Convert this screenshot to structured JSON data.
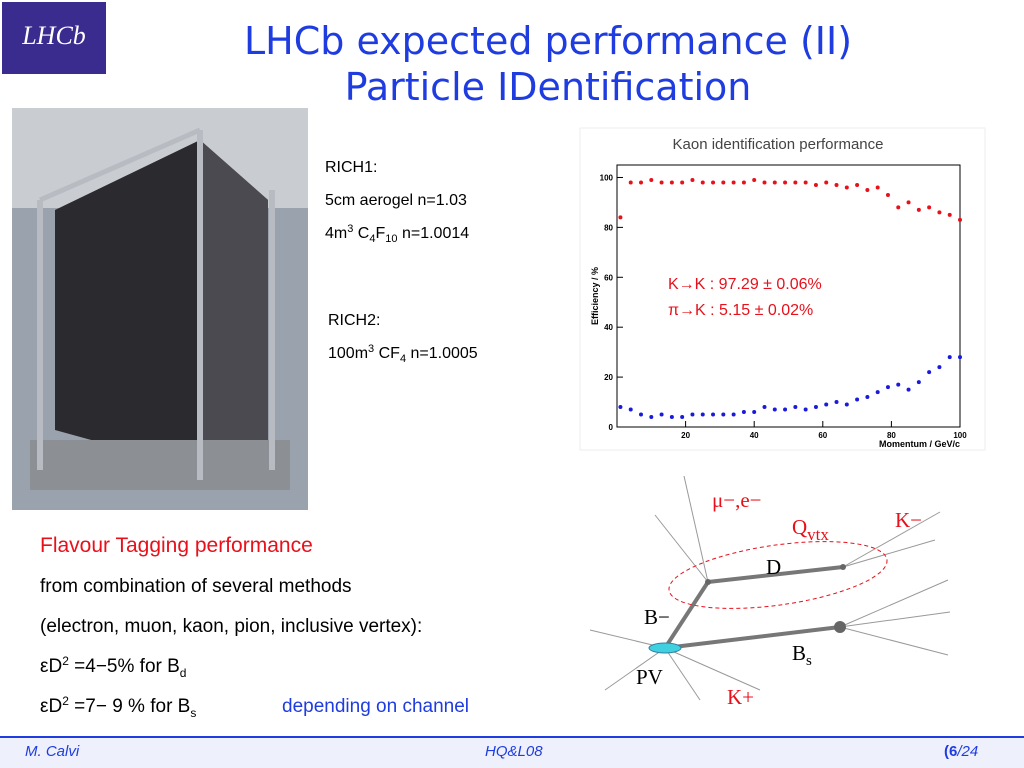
{
  "logo": "LHCb",
  "title": [
    "LHCb expected performance (II)",
    "Particle IDentification"
  ],
  "rich1": [
    [
      "RICH1:"
    ],
    [
      "5cm aerogel n=1.03"
    ],
    [
      "4m",
      "3",
      " C",
      "4",
      "F",
      "10",
      " n=1.0014"
    ]
  ],
  "rich2": [
    [
      "RICH2:"
    ],
    [
      "100m",
      "3",
      " CF",
      "4",
      "  n=1.0005"
    ]
  ],
  "tagging": {
    "heading": "Flavour Tagging performance",
    "lines": [
      "from combination of several methods",
      "(electron, muon, kaon, pion, inclusive vertex):"
    ],
    "eff_d": [
      "εD",
      "2",
      " =4−5% for B",
      "d"
    ],
    "eff_s": [
      "εD",
      "2",
      " =7− 9 % for B",
      "s"
    ],
    "note": "depending on channel"
  },
  "chart_data": {
    "type": "scatter",
    "title": "Kaon identification performance",
    "x_label": "Momentum / GeV/c",
    "y_label": "Efficiency / %",
    "x": [
      1,
      4,
      7,
      10,
      13,
      16,
      19,
      22,
      25,
      28,
      31,
      34,
      37,
      40,
      43,
      46,
      49,
      52,
      55,
      58,
      61,
      64,
      67,
      70,
      73,
      76,
      79,
      82,
      85,
      88,
      91,
      94,
      97,
      100
    ],
    "series": [
      {
        "name": "K→K",
        "color": "#e8101a",
        "values": [
          84,
          98,
          98,
          99,
          98,
          98,
          98,
          99,
          98,
          98,
          98,
          98,
          98,
          99,
          98,
          98,
          98,
          98,
          98,
          97,
          98,
          97,
          96,
          97,
          95,
          96,
          93,
          88,
          90,
          87,
          88,
          86,
          85,
          83
        ]
      },
      {
        "name": "π→K",
        "color": "#1a1adc",
        "values": [
          8,
          7,
          5,
          4,
          5,
          4,
          4,
          5,
          5,
          5,
          5,
          5,
          6,
          6,
          8,
          7,
          7,
          8,
          7,
          8,
          9,
          10,
          9,
          11,
          12,
          14,
          16,
          17,
          15,
          18,
          22,
          24,
          28,
          28
        ]
      }
    ],
    "annotations": [
      "K→K : 97.29 ± 0.06%",
      "π→K : 5.15 ± 0.02%"
    ],
    "xlim": [
      0,
      100
    ],
    "xticks": [
      20,
      40,
      60,
      80,
      100
    ],
    "ylim": [
      0,
      105
    ],
    "yticks": [
      0,
      20,
      40,
      60,
      80,
      100
    ]
  },
  "diagram": {
    "labels": [
      "μ−,e−",
      "Q",
      "vtx",
      "K−",
      "D",
      "B−",
      "B",
      "s",
      "PV",
      "K+"
    ]
  },
  "footer": {
    "author": "M. Calvi",
    "conference": "HQ&L08",
    "page": "(6",
    "total": "/24"
  }
}
